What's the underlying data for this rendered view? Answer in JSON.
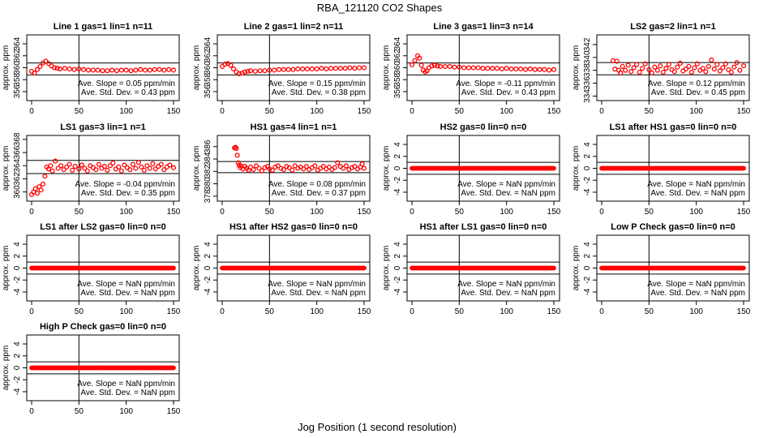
{
  "figure": {
    "title": "RBA_121120  CO2 Shapes",
    "xlabel": "Jog Position (1 second resolution)",
    "ylabel": "approx. ppm",
    "slope_units": "ppm/min",
    "sd_units": "ppm",
    "slope_label": "Ave. Slope =",
    "sd_label": "Ave. Std. Dev. =",
    "series_color": "#ff0000"
  },
  "chart_data": [
    {
      "type": "scatter",
      "title": "Line 1 gas=1 lin=1 n=11",
      "xlim": [
        0,
        150
      ],
      "xticks": [
        0,
        50,
        100,
        150
      ],
      "ylim": [
        354.5,
        365.5
      ],
      "yticks": [
        356,
        358,
        360,
        362,
        364
      ],
      "hlines": [
        360.8,
        358.8
      ],
      "vline": 50,
      "slope": "0.05",
      "sd": "0.43",
      "x": [
        0,
        3,
        6,
        9,
        12,
        15,
        18,
        21,
        24,
        27,
        30,
        35,
        40,
        45,
        50,
        55,
        60,
        65,
        70,
        75,
        80,
        85,
        90,
        95,
        100,
        105,
        110,
        115,
        120,
        125,
        130,
        135,
        140,
        145,
        150
      ],
      "y": [
        359.4,
        359.1,
        359.7,
        360.2,
        360.8,
        361.1,
        360.7,
        360.3,
        360.0,
        359.9,
        359.8,
        359.9,
        359.8,
        359.7,
        359.8,
        359.7,
        359.6,
        359.6,
        359.6,
        359.5,
        359.5,
        359.6,
        359.5,
        359.6,
        359.6,
        359.5,
        359.6,
        359.7,
        359.6,
        359.6,
        359.7,
        359.7,
        359.6,
        359.7,
        359.6
      ]
    },
    {
      "type": "scatter",
      "title": "Line 2 gas=1 lin=2 n=11",
      "xlim": [
        0,
        150
      ],
      "xticks": [
        0,
        50,
        100,
        150
      ],
      "ylim": [
        354.5,
        365.5
      ],
      "yticks": [
        356,
        358,
        360,
        362,
        364
      ],
      "hlines": [
        360.8,
        358.8
      ],
      "vline": 50,
      "slope": "0.15",
      "sd": "0.38",
      "x": [
        0,
        3,
        6,
        9,
        12,
        15,
        18,
        21,
        24,
        27,
        30,
        35,
        40,
        45,
        50,
        55,
        60,
        65,
        70,
        75,
        80,
        85,
        90,
        95,
        100,
        105,
        110,
        115,
        120,
        125,
        130,
        135,
        140,
        145,
        150
      ],
      "y": [
        360.2,
        360.6,
        360.7,
        360.4,
        359.8,
        359.3,
        359.0,
        359.1,
        359.3,
        359.4,
        359.5,
        359.4,
        359.5,
        359.5,
        359.6,
        359.6,
        359.7,
        359.7,
        359.7,
        359.7,
        359.8,
        359.8,
        359.8,
        359.8,
        359.8,
        359.9,
        359.8,
        359.9,
        359.9,
        359.9,
        359.9,
        360.0,
        359.9,
        360.0,
        360.0
      ]
    },
    {
      "type": "scatter",
      "title": "Line 3 gas=1 lin=3 n=14",
      "xlim": [
        0,
        150
      ],
      "xticks": [
        0,
        50,
        100,
        150
      ],
      "ylim": [
        354.5,
        365.5
      ],
      "yticks": [
        356,
        358,
        360,
        362,
        364
      ],
      "hlines": [
        360.8,
        358.8
      ],
      "vline": 50,
      "slope": "-0.11",
      "sd": "0.43",
      "x": [
        0,
        3,
        6,
        8,
        10,
        12,
        14,
        16,
        18,
        21,
        24,
        27,
        30,
        35,
        40,
        45,
        50,
        55,
        60,
        65,
        70,
        75,
        80,
        85,
        90,
        95,
        100,
        105,
        110,
        115,
        120,
        125,
        130,
        135,
        140,
        145,
        150
      ],
      "y": [
        360.5,
        361.2,
        362.0,
        361.6,
        360.4,
        359.6,
        359.3,
        359.5,
        360.0,
        360.3,
        360.4,
        360.3,
        360.2,
        360.2,
        360.2,
        360.1,
        360.1,
        360.0,
        360.0,
        360.0,
        360.0,
        359.9,
        359.9,
        359.9,
        359.9,
        359.8,
        359.9,
        359.8,
        359.8,
        359.8,
        359.7,
        359.8,
        359.7,
        359.7,
        359.7,
        359.6,
        359.7
      ]
    },
    {
      "type": "scatter",
      "title": "LS2 gas=2 lin=1 n=1",
      "xlim": [
        0,
        150
      ],
      "xticks": [
        0,
        50,
        100,
        150
      ],
      "ylim": [
        333.3,
        343.5
      ],
      "yticks": [
        334,
        336,
        338,
        340,
        342
      ],
      "hlines": [
        339.2,
        337.3
      ],
      "vline": 50,
      "slope": "0.12",
      "sd": "0.45",
      "x": [
        12,
        14,
        16,
        18,
        20,
        22,
        25,
        28,
        31,
        34,
        37,
        40,
        43,
        46,
        50,
        53,
        56,
        59,
        62,
        65,
        68,
        71,
        74,
        77,
        80,
        83,
        86,
        89,
        92,
        95,
        98,
        101,
        104,
        107,
        110,
        113,
        116,
        119,
        122,
        125,
        128,
        131,
        134,
        137,
        140,
        143,
        146,
        150
      ],
      "y": [
        339.5,
        338.2,
        339.4,
        338.0,
        337.6,
        338.6,
        338.0,
        338.8,
        337.8,
        338.4,
        338.9,
        337.7,
        338.3,
        339.0,
        338.1,
        337.6,
        338.5,
        338.0,
        338.7,
        337.7,
        338.3,
        338.9,
        338.1,
        337.8,
        338.5,
        339.1,
        337.9,
        338.2,
        338.6,
        337.7,
        338.4,
        339.0,
        338.0,
        338.3,
        337.8,
        338.6,
        339.6,
        338.2,
        338.9,
        337.9,
        338.4,
        339.0,
        338.1,
        337.7,
        338.5,
        339.2,
        338.0,
        338.7
      ]
    },
    {
      "type": "scatter",
      "title": "LS1 gas=3 lin=1 n=1",
      "xlim": [
        0,
        150
      ],
      "xticks": [
        0,
        50,
        100,
        150
      ],
      "ylim": [
        358.6,
        368.6
      ],
      "yticks": [
        360,
        362,
        364,
        366,
        368
      ],
      "hlines": [
        364.8,
        362.8
      ],
      "vline": 50,
      "slope": "-0.04",
      "sd": "0.35",
      "x": [
        0,
        2,
        4,
        6,
        8,
        10,
        12,
        14,
        16,
        18,
        20,
        22,
        25,
        28,
        31,
        34,
        37,
        40,
        43,
        46,
        50,
        53,
        56,
        59,
        62,
        65,
        68,
        71,
        74,
        77,
        80,
        83,
        86,
        89,
        92,
        95,
        98,
        101,
        104,
        107,
        110,
        113,
        116,
        119,
        122,
        125,
        128,
        131,
        134,
        137,
        140,
        143,
        146,
        150
      ],
      "y": [
        359.6,
        360.0,
        360.5,
        359.8,
        360.8,
        360.3,
        361.2,
        362.4,
        363.8,
        363.5,
        364.0,
        363.2,
        364.7,
        363.6,
        364.0,
        363.4,
        363.8,
        364.2,
        363.3,
        363.9,
        363.5,
        364.1,
        363.6,
        363.2,
        364.0,
        363.7,
        363.4,
        364.2,
        363.6,
        363.9,
        363.3,
        364.0,
        364.4,
        363.5,
        363.8,
        363.2,
        364.1,
        363.7,
        363.4,
        364.2,
        363.6,
        364.5,
        363.8,
        363.3,
        364.0,
        363.6,
        364.3,
        363.5,
        363.9,
        364.2,
        363.4,
        363.8,
        364.1,
        363.7
      ]
    },
    {
      "type": "scatter",
      "title": "HS1 gas=4 lin=1 n=1",
      "xlim": [
        0,
        150
      ],
      "xticks": [
        0,
        50,
        100,
        150
      ],
      "ylim": [
        377.2,
        387.8
      ],
      "yticks": [
        378,
        380,
        382,
        384,
        386
      ],
      "hlines": [
        383.6,
        381.8
      ],
      "vline": 50,
      "slope": "0.08",
      "sd": "0.37",
      "x": [
        13,
        14,
        15,
        16,
        17,
        18,
        19,
        20,
        22,
        24,
        26,
        28,
        30,
        33,
        36,
        39,
        42,
        45,
        48,
        50,
        53,
        56,
        59,
        62,
        65,
        68,
        71,
        74,
        77,
        80,
        83,
        86,
        89,
        92,
        95,
        98,
        101,
        104,
        107,
        110,
        113,
        116,
        119,
        122,
        125,
        128,
        131,
        134,
        137,
        140,
        143,
        146,
        148,
        150
      ],
      "y": [
        385.8,
        385.9,
        385.7,
        384.6,
        383.4,
        383.0,
        382.6,
        382.9,
        382.4,
        382.8,
        382.5,
        382.2,
        382.7,
        382.3,
        382.9,
        382.5,
        382.1,
        382.6,
        382.8,
        382.4,
        382.2,
        382.7,
        382.9,
        382.5,
        382.3,
        382.8,
        382.6,
        382.2,
        382.9,
        382.5,
        382.7,
        382.4,
        382.8,
        382.3,
        382.6,
        382.9,
        382.2,
        382.5,
        382.8,
        382.4,
        382.7,
        382.3,
        382.6,
        383.4,
        382.8,
        382.5,
        382.9,
        382.3,
        382.6,
        382.8,
        382.4,
        382.7,
        383.2,
        382.5
      ]
    },
    {
      "type": "scatter",
      "title": "HS2 gas=0 lin=0 n=0",
      "xlim": [
        0,
        150
      ],
      "xticks": [
        0,
        50,
        100,
        150
      ],
      "ylim": [
        -5.5,
        5.5
      ],
      "yticks": [
        -4,
        -2,
        0,
        2,
        4
      ],
      "hlines": [
        1,
        -1
      ],
      "vline": 50,
      "slope": "NaN",
      "sd": "NaN",
      "x": [
        0,
        150
      ],
      "y": [
        0,
        0
      ],
      "dense": true
    },
    {
      "type": "scatter",
      "title": "LS1 after HS1 gas=0 lin=0 n=0",
      "xlim": [
        0,
        150
      ],
      "xticks": [
        0,
        50,
        100,
        150
      ],
      "ylim": [
        -5.5,
        5.5
      ],
      "yticks": [
        -4,
        -2,
        0,
        2,
        4
      ],
      "hlines": [
        1,
        -1
      ],
      "vline": 50,
      "slope": "NaN",
      "sd": "NaN",
      "x": [
        0,
        150
      ],
      "y": [
        0,
        0
      ],
      "dense": true
    },
    {
      "type": "scatter",
      "title": "LS1 after LS2 gas=0 lin=0 n=0",
      "xlim": [
        0,
        150
      ],
      "xticks": [
        0,
        50,
        100,
        150
      ],
      "ylim": [
        -5.5,
        5.5
      ],
      "yticks": [
        -4,
        -2,
        0,
        2,
        4
      ],
      "hlines": [
        1,
        -1
      ],
      "vline": 50,
      "slope": "NaN",
      "sd": "NaN",
      "x": [
        0,
        150
      ],
      "y": [
        0,
        0
      ],
      "dense": true
    },
    {
      "type": "scatter",
      "title": "HS1 after HS2 gas=0 lin=0 n=0",
      "xlim": [
        0,
        150
      ],
      "xticks": [
        0,
        50,
        100,
        150
      ],
      "ylim": [
        -5.5,
        5.5
      ],
      "yticks": [
        -4,
        -2,
        0,
        2,
        4
      ],
      "hlines": [
        1,
        -1
      ],
      "vline": 50,
      "slope": "NaN",
      "sd": "NaN",
      "x": [
        0,
        150
      ],
      "y": [
        0,
        0
      ],
      "dense": true
    },
    {
      "type": "scatter",
      "title": "HS1 after LS1 gas=0 lin=0 n=0",
      "xlim": [
        0,
        150
      ],
      "xticks": [
        0,
        50,
        100,
        150
      ],
      "ylim": [
        -5.5,
        5.5
      ],
      "yticks": [
        -4,
        -2,
        0,
        2,
        4
      ],
      "hlines": [
        1,
        -1
      ],
      "vline": 50,
      "slope": "NaN",
      "sd": "NaN",
      "x": [
        0,
        150
      ],
      "y": [
        0,
        0
      ],
      "dense": true
    },
    {
      "type": "scatter",
      "title": "Low P Check gas=0 lin=0 n=0",
      "xlim": [
        0,
        150
      ],
      "xticks": [
        0,
        50,
        100,
        150
      ],
      "ylim": [
        -5.5,
        5.5
      ],
      "yticks": [
        -4,
        -2,
        0,
        2,
        4
      ],
      "hlines": [
        1,
        -1
      ],
      "vline": 50,
      "slope": "NaN",
      "sd": "NaN",
      "x": [
        0,
        150
      ],
      "y": [
        0,
        0
      ],
      "dense": true
    },
    {
      "type": "scatter",
      "title": "High P Check gas=0 lin=0 n=0",
      "xlim": [
        0,
        150
      ],
      "xticks": [
        0,
        50,
        100,
        150
      ],
      "ylim": [
        -5.5,
        5.5
      ],
      "yticks": [
        -4,
        -2,
        0,
        2,
        4
      ],
      "hlines": [
        1,
        -1
      ],
      "vline": 50,
      "slope": "NaN",
      "sd": "NaN",
      "x": [
        0,
        150
      ],
      "y": [
        0,
        0
      ],
      "dense": true
    }
  ]
}
